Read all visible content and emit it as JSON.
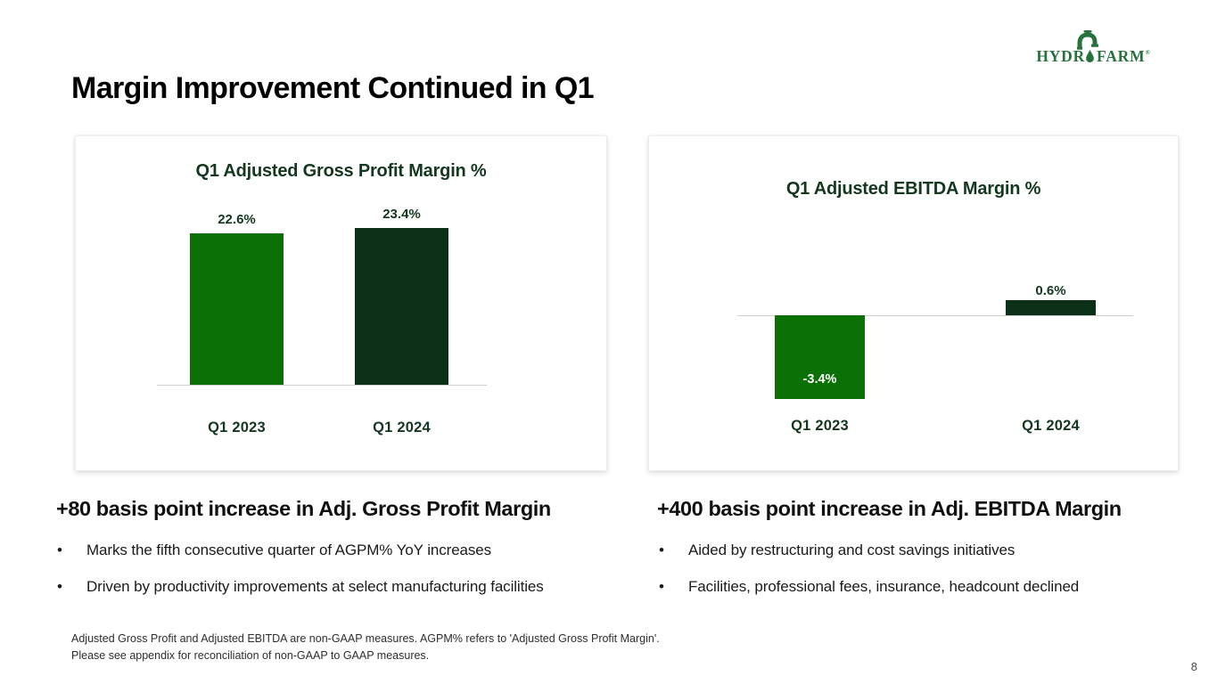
{
  "slide": {
    "title": "Margin Improvement Continued in Q1",
    "page_number": "8",
    "footnote_line1": "Adjusted Gross Profit and Adjusted EBITDA are non-GAAP measures.  AGPM% refers to 'Adjusted Gross Profit Margin'.",
    "footnote_line2": "Please see appendix for reconciliation of non-GAAP to GAAP measures."
  },
  "logo": {
    "part1": "HYDR",
    "part2": "FARM",
    "registered": "®",
    "color": "#26713c"
  },
  "left_section": {
    "headline": "+80 basis point increase in Adj. Gross Profit Margin",
    "bullet_glyph": "•",
    "bullets": [
      "Marks the fifth consecutive quarter of AGPM% YoY increases",
      "Driven by productivity improvements at select manufacturing facilities"
    ]
  },
  "right_section": {
    "headline": "+400 basis point increase in Adj. EBITDA Margin",
    "bullet_glyph": "•",
    "bullets": [
      "Aided by restructuring and cost savings initiatives",
      "Facilities, professional fees, insurance, headcount declined"
    ]
  },
  "colors": {
    "bright_green": "#0b7005",
    "dark_green": "#0b2f17",
    "heading_green": "#14381f",
    "axis_gray": "#cfcfcf",
    "logo_green": "#26713c"
  },
  "chart_data": [
    {
      "type": "bar",
      "title": "Q1 Adjusted Gross Profit Margin %",
      "categories": [
        "Q1 2023",
        "Q1 2024"
      ],
      "values": [
        22.6,
        23.4
      ],
      "labels": [
        "22.6%",
        "23.4%"
      ],
      "label_positions": [
        "above",
        "above"
      ],
      "bar_colors": [
        "#0b7005",
        "#0b2f17"
      ],
      "xlabel": "",
      "ylabel": "",
      "ylim": [
        0,
        26
      ],
      "grid": false,
      "legend": "none"
    },
    {
      "type": "bar",
      "title": "Q1 Adjusted EBITDA Margin %",
      "categories": [
        "Q1 2023",
        "Q1 2024"
      ],
      "values": [
        -3.4,
        0.6
      ],
      "labels": [
        "-3.4%",
        "0.6%"
      ],
      "label_positions": [
        "inside",
        "above"
      ],
      "bar_colors": [
        "#0b7005",
        "#0b2f17"
      ],
      "xlabel": "",
      "ylabel": "",
      "ylim": [
        -4.5,
        1.5
      ],
      "grid": false,
      "legend": "none"
    }
  ]
}
